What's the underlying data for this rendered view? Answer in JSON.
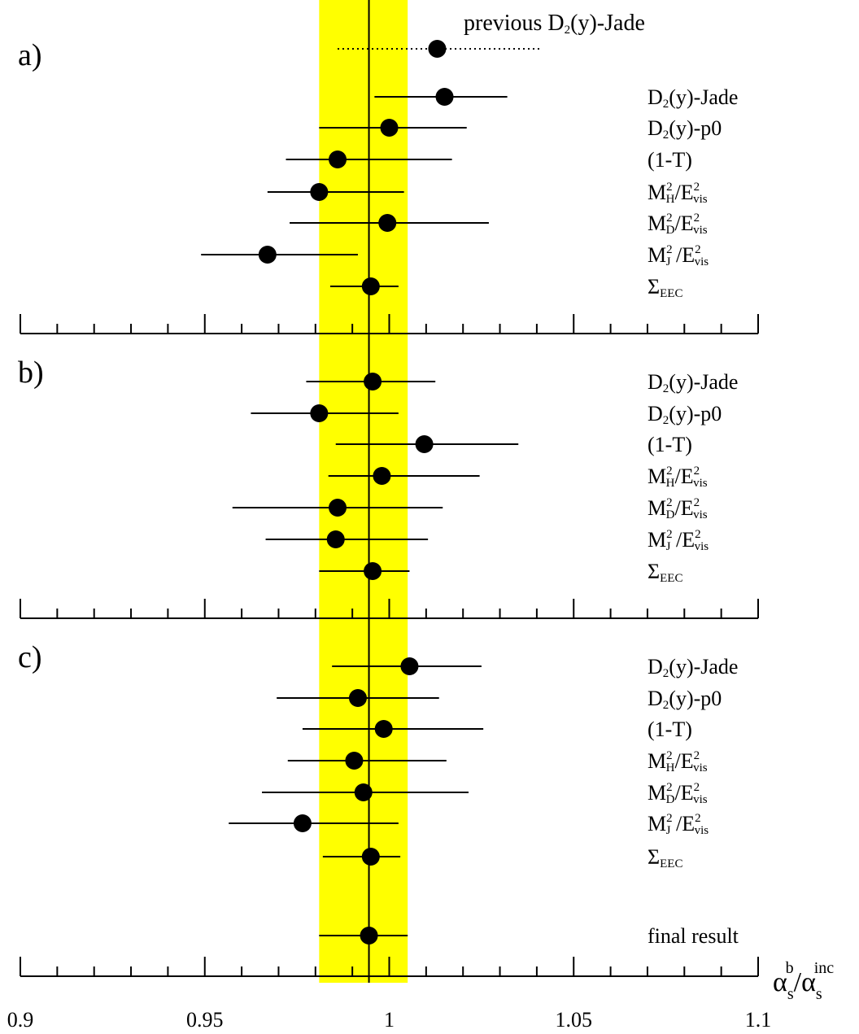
{
  "chart_data": {
    "type": "scatter",
    "xlabel": {
      "base": "α",
      "sub": "s",
      "sup": "b",
      "mid": "/α",
      "sub2": "s",
      "sup2": "inc"
    },
    "xlim": [
      0.9,
      1.1
    ],
    "x_ticks": [
      "0.9",
      "0.95",
      "1",
      "1.05",
      "1.1"
    ],
    "x_tick_values": [
      0.9,
      0.95,
      1.0,
      1.05,
      1.1
    ],
    "minor_tick_step": 0.01,
    "reference_line": 0.9945,
    "band": [
      0.981,
      1.005
    ],
    "band_color": "#ffff00",
    "point_color": "#000000",
    "panels": [
      {
        "label": "a)",
        "extra": {
          "label": {
            "base": "previous D",
            "sub": "2",
            "rest": "(y)-Jade"
          },
          "value": 1.013,
          "low": 0.986,
          "high": 1.041,
          "style": "dotted"
        },
        "points": [
          {
            "label": {
              "base": "D",
              "sub": "2",
              "rest": "(y)-Jade"
            },
            "value": 1.015,
            "low": 0.996,
            "high": 1.032
          },
          {
            "label": {
              "base": "D",
              "sub": "2",
              "rest": "(y)-p0"
            },
            "value": 1.0,
            "low": 0.981,
            "high": 1.021
          },
          {
            "label": {
              "base": "(1-T)",
              "sub": "",
              "rest": ""
            },
            "value": 0.986,
            "low": 0.972,
            "high": 1.017
          },
          {
            "label": {
              "base": "M",
              "sup": "2",
              "sub": "H",
              "rest": "/E",
              "sup2": "2",
              "sub2": "vis"
            },
            "value": 0.981,
            "low": 0.967,
            "high": 1.004
          },
          {
            "label": {
              "base": "M",
              "sup": "2",
              "sub": "D",
              "rest": "/E",
              "sup2": "2",
              "sub2": "vis"
            },
            "value": 0.9995,
            "low": 0.973,
            "high": 1.027
          },
          {
            "label": {
              "base": "M",
              "sup": "2",
              "sub": "J",
              "rest": " /E",
              "sup2": "2",
              "sub2": "vis"
            },
            "value": 0.967,
            "low": 0.949,
            "high": 0.9915
          },
          {
            "label": {
              "base": "Σ",
              "sub": "EEC",
              "rest": ""
            },
            "value": 0.995,
            "low": 0.984,
            "high": 1.0025
          }
        ]
      },
      {
        "label": "b)",
        "points": [
          {
            "label": {
              "base": "D",
              "sub": "2",
              "rest": "(y)-Jade"
            },
            "value": 0.9955,
            "low": 0.9775,
            "high": 1.0125
          },
          {
            "label": {
              "base": "D",
              "sub": "2",
              "rest": "(y)-p0"
            },
            "value": 0.981,
            "low": 0.9625,
            "high": 1.0025
          },
          {
            "label": {
              "base": "(1-T)",
              "sub": "",
              "rest": ""
            },
            "value": 1.0095,
            "low": 0.9855,
            "high": 1.035
          },
          {
            "label": {
              "base": "M",
              "sup": "2",
              "sub": "H",
              "rest": "/E",
              "sup2": "2",
              "sub2": "vis"
            },
            "value": 0.998,
            "low": 0.9835,
            "high": 1.0245
          },
          {
            "label": {
              "base": "M",
              "sup": "2",
              "sub": "D",
              "rest": "/E",
              "sup2": "2",
              "sub2": "vis"
            },
            "value": 0.986,
            "low": 0.9575,
            "high": 1.0145
          },
          {
            "label": {
              "base": "M",
              "sup": "2",
              "sub": "J",
              "rest": " /E",
              "sup2": "2",
              "sub2": "vis"
            },
            "value": 0.9855,
            "low": 0.9665,
            "high": 1.0105
          },
          {
            "label": {
              "base": "Σ",
              "sub": "EEC",
              "rest": ""
            },
            "value": 0.9955,
            "low": 0.981,
            "high": 1.0055
          }
        ]
      },
      {
        "label": "c)",
        "points": [
          {
            "label": {
              "base": "D",
              "sub": "2",
              "rest": "(y)-Jade"
            },
            "value": 1.0055,
            "low": 0.9845,
            "high": 1.025
          },
          {
            "label": {
              "base": "D",
              "sub": "2",
              "rest": "(y)-p0"
            },
            "value": 0.9915,
            "low": 0.9695,
            "high": 1.0135
          },
          {
            "label": {
              "base": "(1-T)",
              "sub": "",
              "rest": ""
            },
            "value": 0.9985,
            "low": 0.9765,
            "high": 1.0255
          },
          {
            "label": {
              "base": "M",
              "sup": "2",
              "sub": "H",
              "rest": "/E",
              "sup2": "2",
              "sub2": "vis"
            },
            "value": 0.9905,
            "low": 0.9725,
            "high": 1.0155
          },
          {
            "label": {
              "base": "M",
              "sup": "2",
              "sub": "D",
              "rest": "/E",
              "sup2": "2",
              "sub2": "vis"
            },
            "value": 0.993,
            "low": 0.9655,
            "high": 1.0215
          },
          {
            "label": {
              "base": "M",
              "sup": "2",
              "sub": "J",
              "rest": " /E",
              "sup2": "2",
              "sub2": "vis"
            },
            "value": 0.9765,
            "low": 0.9565,
            "high": 1.0025
          },
          {
            "label": {
              "base": "Σ",
              "sub": "EEC",
              "rest": ""
            },
            "value": 0.995,
            "low": 0.982,
            "high": 1.003
          }
        ],
        "final": {
          "label": {
            "base": "final result",
            "sub": "",
            "rest": ""
          },
          "value": 0.9945,
          "low": 0.981,
          "high": 1.005
        }
      }
    ]
  }
}
